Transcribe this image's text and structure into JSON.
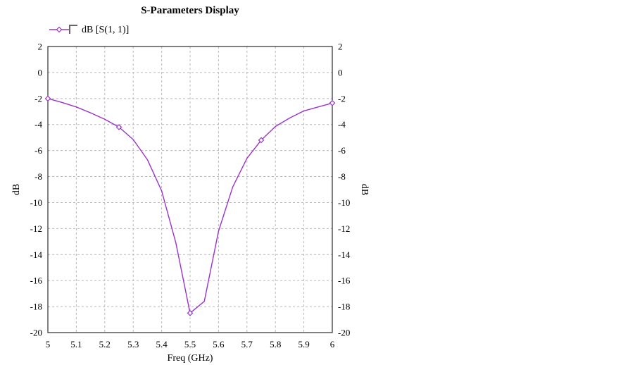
{
  "chart_data": {
    "type": "line",
    "title": "S-Parameters Display",
    "xlabel": "Freq (GHz)",
    "ylabel_left": "dB",
    "ylabel_right": "dB",
    "xlim": [
      5,
      6
    ],
    "ylim": [
      -20,
      2
    ],
    "x_ticks": [
      5,
      5.1,
      5.2,
      5.3,
      5.4,
      5.5,
      5.6,
      5.7,
      5.8,
      5.9,
      6
    ],
    "x_tick_labels": [
      "5",
      "5.1",
      "5.2",
      "5.3",
      "5.4",
      "5.5",
      "5.6",
      "5.7",
      "5.8",
      "5.9",
      "6"
    ],
    "y_ticks": [
      2,
      0,
      -2,
      -4,
      -6,
      -8,
      -10,
      -12,
      -14,
      -16,
      -18,
      -20
    ],
    "y_tick_labels": [
      "2",
      "0",
      "-2",
      "-4",
      "-6",
      "-8",
      "-10",
      "-12",
      "-14",
      "-16",
      "-18",
      "-20"
    ],
    "grid": true,
    "legend_position": "top-left",
    "series": [
      {
        "name": "dB [S(1, 1)]",
        "color": "#9933cc",
        "marker": "diamond",
        "x": [
          5.0,
          5.05,
          5.1,
          5.15,
          5.2,
          5.25,
          5.3,
          5.35,
          5.4,
          5.45,
          5.5,
          5.55,
          5.6,
          5.65,
          5.7,
          5.75,
          5.8,
          5.85,
          5.9,
          5.95,
          6.0
        ],
        "y": [
          -2.0,
          -2.3,
          -2.65,
          -3.1,
          -3.6,
          -4.2,
          -5.15,
          -6.7,
          -9.1,
          -13.1,
          -18.5,
          -17.6,
          -12.2,
          -8.8,
          -6.6,
          -5.2,
          -4.15,
          -3.5,
          -2.95,
          -2.65,
          -2.35
        ],
        "marker_x": [
          5.0,
          5.25,
          5.5,
          5.75,
          6.0
        ]
      }
    ]
  }
}
